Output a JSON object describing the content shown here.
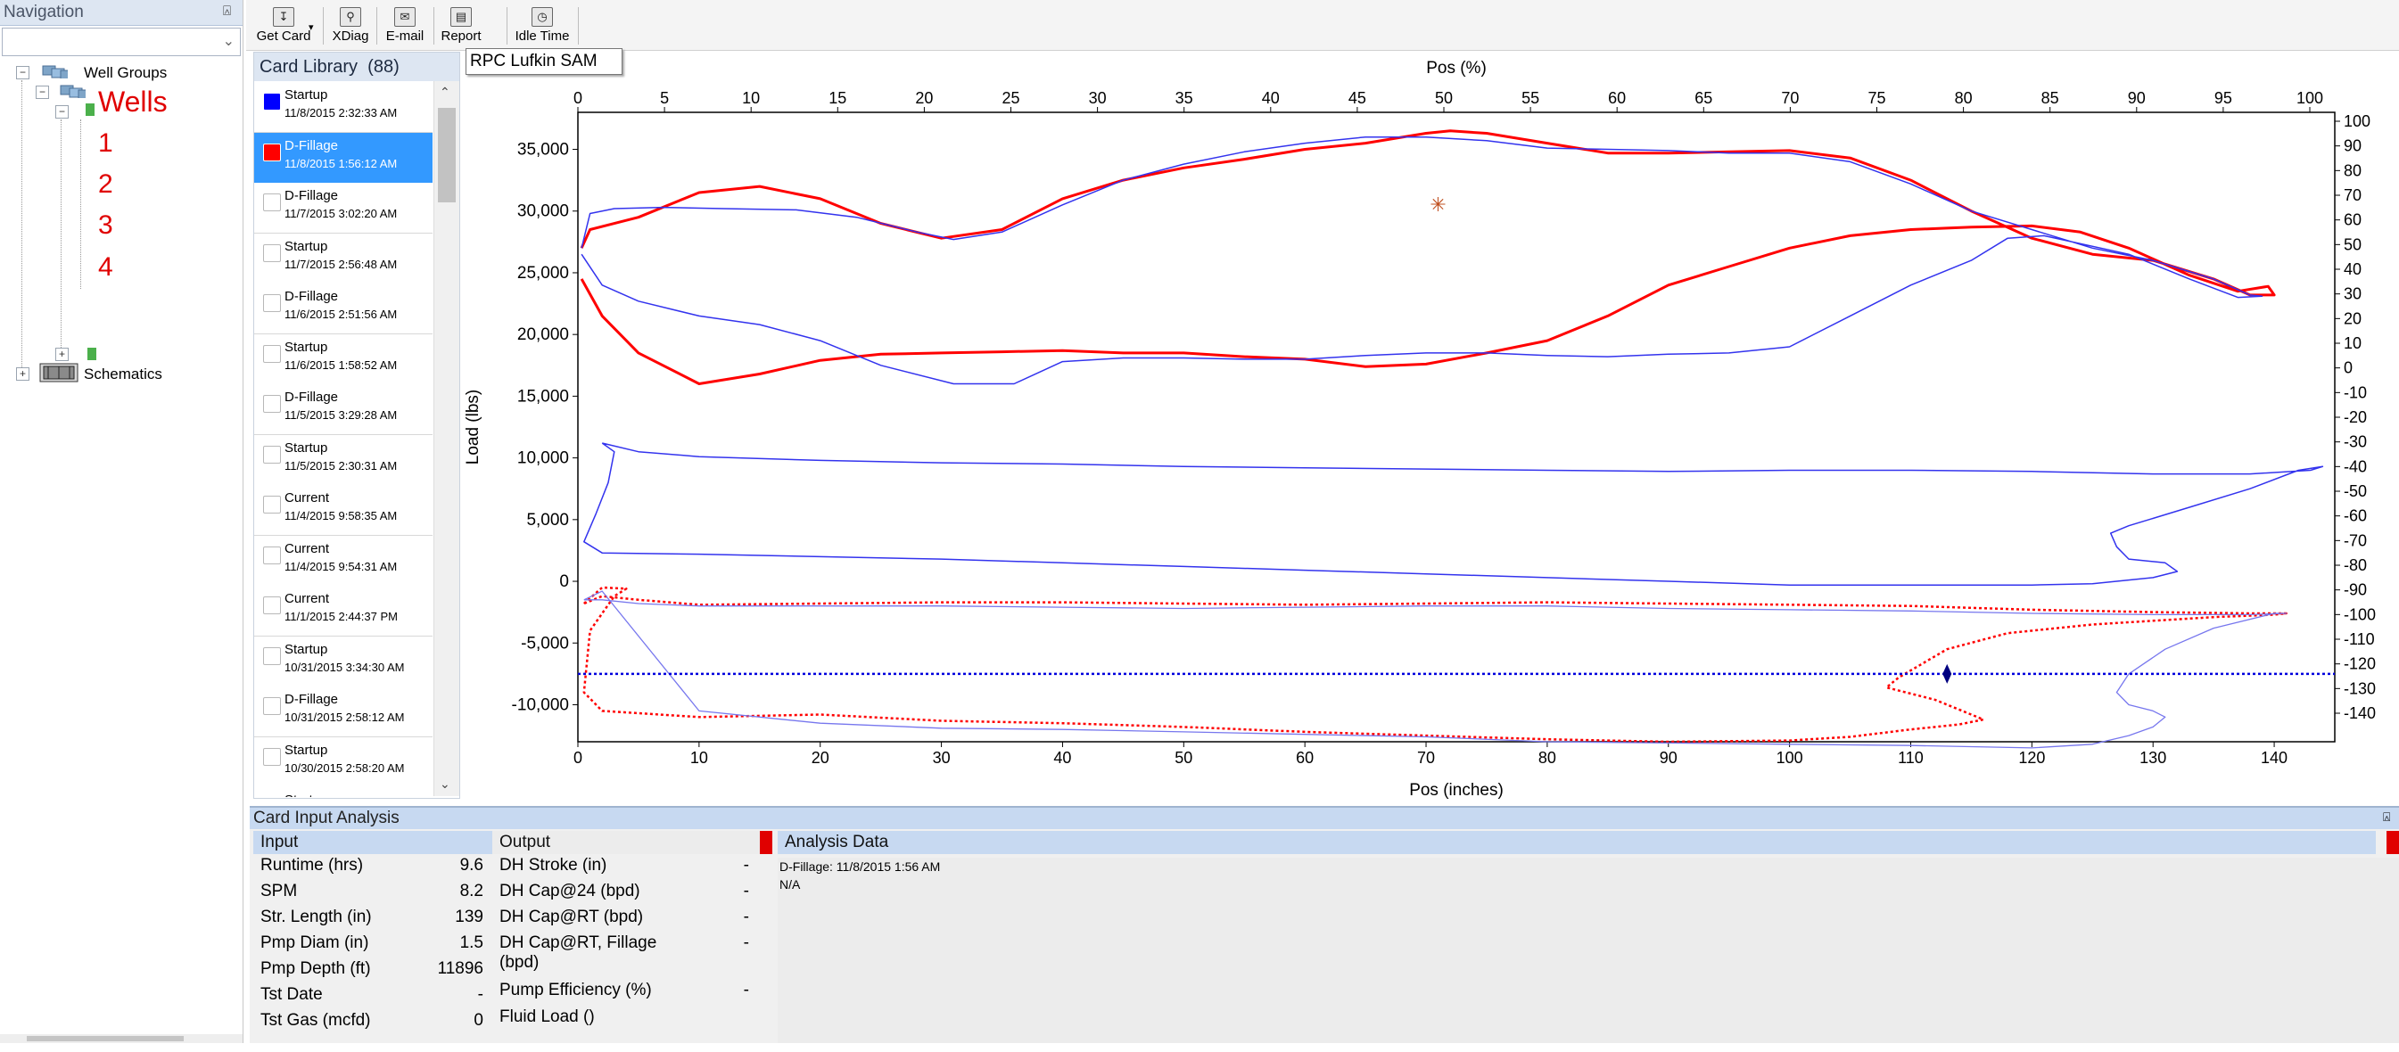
{
  "navigation": {
    "title": "Navigation",
    "pin_icon": "pin-icon",
    "tree": {
      "well_groups_label": "Well Groups",
      "wells_label": "Wells",
      "well_items": [
        "1",
        "2",
        "3",
        "4"
      ],
      "schematics_label": "Schematics"
    }
  },
  "toolbar": {
    "buttons": [
      {
        "label": "Get Card",
        "icon": "download-icon"
      },
      {
        "label": "XDiag",
        "icon": "magnify-icon"
      },
      {
        "label": "E-mail",
        "icon": "envelope-icon"
      },
      {
        "label": "Report",
        "icon": "report-icon"
      },
      {
        "label": "Idle Time",
        "icon": "clock-icon"
      }
    ]
  },
  "card_library": {
    "title": "Card Library",
    "count": "(88)",
    "items": [
      {
        "name": "Startup",
        "date": "11/8/2015 2:32:33 AM",
        "color": "#0000ff",
        "selected": false
      },
      {
        "name": "D-Fillage",
        "date": "11/8/2015 1:56:12 AM",
        "color": "#ff0000",
        "selected": true
      },
      {
        "name": "D-Fillage",
        "date": "11/7/2015 3:02:20 AM",
        "color": "",
        "selected": false
      },
      {
        "name": "Startup",
        "date": "11/7/2015 2:56:48 AM",
        "color": "",
        "selected": false
      },
      {
        "name": "D-Fillage",
        "date": "11/6/2015 2:51:56 AM",
        "color": "",
        "selected": false
      },
      {
        "name": "Startup",
        "date": "11/6/2015 1:58:52 AM",
        "color": "",
        "selected": false
      },
      {
        "name": "D-Fillage",
        "date": "11/5/2015 3:29:28 AM",
        "color": "",
        "selected": false
      },
      {
        "name": "Startup",
        "date": "11/5/2015 2:30:31 AM",
        "color": "",
        "selected": false
      },
      {
        "name": "Current",
        "date": "11/4/2015 9:58:35 AM",
        "color": "",
        "selected": false
      },
      {
        "name": "Current",
        "date": "11/4/2015 9:54:31 AM",
        "color": "",
        "selected": false
      },
      {
        "name": "Current",
        "date": "11/1/2015 2:44:37 PM",
        "color": "",
        "selected": false
      },
      {
        "name": "Startup",
        "date": "10/31/2015 3:34:30 AM",
        "color": "",
        "selected": false
      },
      {
        "name": "D-Fillage",
        "date": "10/31/2015 2:58:12 AM",
        "color": "",
        "selected": false
      },
      {
        "name": "Startup",
        "date": "10/30/2015 2:58:20 AM",
        "color": "",
        "selected": false
      },
      {
        "name": "Startup",
        "date": "",
        "color": "",
        "selected": false
      }
    ]
  },
  "tooltip": "RPC Lufkin SAM",
  "chart_data": {
    "type": "line",
    "title": "",
    "xlabel_top": "Pos (%)",
    "xlabel_bottom": "Pos (inches)",
    "ylabel_left": "Load (lbs)",
    "xlim_bottom": [
      0,
      145
    ],
    "xticks_bottom": [
      0,
      10,
      20,
      30,
      40,
      50,
      60,
      70,
      80,
      90,
      100,
      110,
      120,
      130,
      140
    ],
    "xlim_top": [
      0,
      100
    ],
    "xticks_top": [
      0,
      5,
      10,
      15,
      20,
      25,
      30,
      35,
      40,
      45,
      50,
      55,
      60,
      65,
      70,
      75,
      80,
      85,
      90,
      95,
      100
    ],
    "ylim_left": [
      -13000,
      38000
    ],
    "yticks_left": [
      -10000,
      -5000,
      0,
      5000,
      10000,
      15000,
      20000,
      25000,
      30000,
      35000
    ],
    "ytick_labels_left": [
      "-10,000",
      "-5,000",
      "0",
      "5,000",
      "10,000",
      "15,000",
      "20,000",
      "25,000",
      "30,000",
      "35,000"
    ],
    "yticks_right": [
      100,
      90,
      80,
      70,
      60,
      50,
      40,
      30,
      20,
      10,
      0,
      -10,
      -20,
      -30,
      -40,
      -50,
      -60,
      -70,
      -80,
      -90,
      -100,
      -110,
      -120,
      -130,
      -140
    ],
    "series": [
      {
        "color": "#ff0000",
        "style": "solid",
        "width": 3,
        "x": [
          0.3,
          1,
          5,
          10,
          15,
          20,
          25,
          30,
          35,
          40,
          45,
          50,
          55,
          60,
          65,
          70,
          72,
          75,
          80,
          85,
          90,
          95,
          100,
          105,
          110,
          115,
          120,
          125,
          130,
          135,
          138,
          140,
          139.5,
          137,
          133,
          128,
          124,
          120,
          115,
          110,
          105,
          100,
          95,
          90,
          85,
          80,
          75,
          70,
          65,
          60,
          55,
          50,
          45,
          40,
          35,
          30,
          25,
          20,
          15,
          10,
          5,
          2,
          0.3
        ],
        "y": [
          27000,
          28500,
          29500,
          31500,
          32000,
          31000,
          29000,
          27800,
          28500,
          31000,
          32500,
          33500,
          34200,
          35000,
          35500,
          36300,
          36500,
          36300,
          35500,
          34700,
          34700,
          34800,
          34900,
          34300,
          32500,
          30000,
          27800,
          26500,
          26000,
          24500,
          23200,
          23200,
          23900,
          23500,
          24800,
          27000,
          28300,
          28800,
          28700,
          28500,
          28000,
          27000,
          25500,
          24000,
          21500,
          19500,
          18500,
          17600,
          17400,
          18000,
          18200,
          18500,
          18500,
          18700,
          18600,
          18500,
          18400,
          17900,
          16800,
          16000,
          18500,
          21500,
          24500
        ]
      },
      {
        "color": "#3333ee",
        "style": "solid",
        "width": 1.5,
        "x": [
          0.3,
          1,
          3,
          7,
          12,
          18,
          23,
          28,
          31,
          35,
          40,
          45,
          50,
          55,
          60,
          65,
          70,
          75,
          80,
          85,
          90,
          95,
          100,
          105,
          110,
          115,
          120,
          125,
          130,
          135,
          138,
          139,
          137,
          133,
          128,
          121,
          118,
          115,
          110,
          105,
          100,
          95,
          90,
          85,
          80,
          75,
          70,
          65,
          60,
          55,
          50,
          45,
          40,
          36,
          31,
          25,
          20,
          15,
          10,
          5,
          2,
          0.3
        ],
        "y": [
          27000,
          29800,
          30200,
          30300,
          30200,
          30100,
          29500,
          28300,
          27700,
          28300,
          30500,
          32500,
          33800,
          34800,
          35500,
          36000,
          36000,
          35700,
          35100,
          35000,
          34900,
          34700,
          34700,
          34000,
          32200,
          30000,
          28500,
          27000,
          26000,
          24500,
          23200,
          23100,
          23000,
          24500,
          26500,
          28000,
          27800,
          26000,
          24000,
          21500,
          19000,
          18500,
          18400,
          18200,
          18300,
          18500,
          18500,
          18300,
          18000,
          18000,
          18100,
          18100,
          17800,
          16000,
          16000,
          17500,
          19500,
          20800,
          21500,
          22700,
          24000,
          26500
        ]
      },
      {
        "color": "#3333ee",
        "style": "solid",
        "width": 1.5,
        "x": [
          2,
          3,
          2.5,
          1.5,
          0.5,
          2,
          10,
          20,
          30,
          40,
          50,
          60,
          70,
          80,
          90,
          100,
          110,
          120,
          125,
          130,
          132,
          131,
          128,
          127,
          126.5,
          128,
          133,
          138,
          142,
          144,
          143,
          138,
          130,
          120,
          110,
          100,
          90,
          80,
          70,
          60,
          50,
          40,
          30,
          20,
          10,
          5,
          2
        ],
        "y": [
          11200,
          10500,
          8000,
          5500,
          3200,
          2300,
          2200,
          2000,
          1800,
          1500,
          1200,
          900,
          600,
          300,
          0,
          -300,
          -300,
          -300,
          -200,
          300,
          800,
          1500,
          1800,
          2800,
          3900,
          4500,
          6000,
          7500,
          9000,
          9300,
          9000,
          8700,
          8700,
          8900,
          9000,
          9000,
          8900,
          9000,
          9100,
          9200,
          9300,
          9500,
          9600,
          9800,
          10100,
          10500,
          11200
        ]
      },
      {
        "color": "#ff0000",
        "style": "dotted",
        "width": 2.5,
        "x": [
          0.5,
          2,
          4,
          3,
          1,
          0.5,
          2,
          10,
          20,
          30,
          40,
          50,
          60,
          70,
          80,
          90,
          100,
          105,
          110,
          114,
          116,
          115,
          112,
          108,
          109,
          113,
          118,
          125,
          130,
          135,
          140,
          141,
          138,
          130,
          120,
          110,
          100,
          90,
          80,
          70,
          60,
          50,
          40,
          30,
          20,
          10,
          5,
          2,
          0.5
        ],
        "y": [
          -1800,
          -500,
          -600,
          -1200,
          -4000,
          -9000,
          -10500,
          -11000,
          -10800,
          -11300,
          -11500,
          -11800,
          -12200,
          -12500,
          -12800,
          -13000,
          -12900,
          -12600,
          -12000,
          -11600,
          -11200,
          -10800,
          -9600,
          -8600,
          -7800,
          -5500,
          -4200,
          -3500,
          -3200,
          -2900,
          -2700,
          -2600,
          -2600,
          -2500,
          -2300,
          -2000,
          -1900,
          -1800,
          -1700,
          -1800,
          -1900,
          -1800,
          -1700,
          -1700,
          -1800,
          -1900,
          -1500,
          -1200,
          -1800
        ]
      },
      {
        "color": "#7777ee",
        "style": "solid",
        "width": 1.3,
        "x": [
          0.5,
          2,
          10,
          20,
          30,
          40,
          50,
          60,
          70,
          80,
          90,
          100,
          110,
          120,
          125,
          128,
          130,
          131,
          130,
          128,
          127,
          128,
          131,
          135,
          140,
          141,
          138,
          130,
          120,
          110,
          100,
          90,
          80,
          70,
          60,
          50,
          40,
          30,
          20,
          10,
          5,
          2,
          0.5
        ],
        "y": [
          -1500,
          -800,
          -10500,
          -11500,
          -11900,
          -12000,
          -12200,
          -12400,
          -12600,
          -13000,
          -13100,
          -13200,
          -13300,
          -13500,
          -13200,
          -12500,
          -11800,
          -11000,
          -10500,
          -10000,
          -9000,
          -7500,
          -5500,
          -3800,
          -2600,
          -2600,
          -2700,
          -2700,
          -2600,
          -2400,
          -2300,
          -2200,
          -2000,
          -2000,
          -2100,
          -2200,
          -2100,
          -2000,
          -2000,
          -2000,
          -1800,
          -1500,
          -1500
        ]
      },
      {
        "color": "#0000dd",
        "style": "dotted",
        "width": 2.5,
        "x": [
          0,
          145
        ],
        "y": [
          -7500,
          -7500
        ]
      }
    ],
    "markers": [
      {
        "type": "star",
        "x": 71,
        "y": 30500,
        "color": "#c05020"
      },
      {
        "type": "diamond",
        "x": 113,
        "y": -7500,
        "color": "#000080"
      }
    ]
  },
  "bottom_panel": {
    "title": "Card Input  Analysis",
    "pin_icon": "pin-icon",
    "input": {
      "header": "Input",
      "rows": [
        {
          "label": "Runtime (hrs)",
          "value": "9.6"
        },
        {
          "label": "SPM",
          "value": "8.2"
        },
        {
          "label": "Str. Length (in)",
          "value": "139"
        },
        {
          "label": "Pmp Diam (in)",
          "value": "1.5"
        },
        {
          "label": "Pmp Depth (ft)",
          "value": "11896"
        },
        {
          "label": "Tst Date",
          "value": "-"
        },
        {
          "label": "Tst Gas (mcfd)",
          "value": "0"
        }
      ]
    },
    "output": {
      "header": "Output",
      "rows": [
        {
          "label": "DH Stroke (in)",
          "value": "-"
        },
        {
          "label": "DH Cap@24 (bpd)",
          "value": "-"
        },
        {
          "label": "DH Cap@RT (bpd)",
          "value": "-"
        },
        {
          "label": "DH Cap@RT, Fillage (bpd)",
          "value": "-"
        },
        {
          "label": "Pump Efficiency (%)",
          "value": "-"
        },
        {
          "label": "Fluid Load ()",
          "value": ""
        }
      ]
    },
    "analysis": {
      "header": "Analysis Data",
      "line1": "D-Fillage: 11/8/2015 1:56 AM",
      "line2": "N/A"
    },
    "status_color": "#ff0000"
  }
}
